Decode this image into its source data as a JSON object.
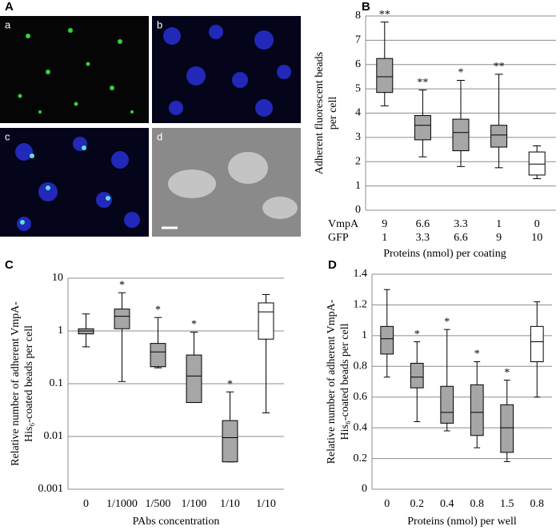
{
  "image_panel": {
    "label": "A",
    "subpanels": [
      "a",
      "b",
      "c",
      "d"
    ]
  },
  "chart_data": [
    {
      "type": "box",
      "label": "B",
      "ylabel": [
        "Adherent  fluorescent beads",
        "per cell"
      ],
      "xlabel": "Proteins (nmol) per coating",
      "category_rows": [
        {
          "name": "VmpA",
          "values": [
            "9",
            "6.6",
            "3.3",
            "1",
            "0"
          ]
        },
        {
          "name": "GFP",
          "values": [
            "1",
            "3.3",
            "6.6",
            "9",
            "10"
          ]
        }
      ],
      "boxes": [
        {
          "min": 4.3,
          "q1": 4.85,
          "median": 5.5,
          "q3": 6.25,
          "max": 7.75,
          "color": "#a6a6a6"
        },
        {
          "min": 2.2,
          "q1": 2.9,
          "median": 3.5,
          "q3": 3.9,
          "max": 4.95,
          "color": "#a6a6a6"
        },
        {
          "min": 1.8,
          "q1": 2.45,
          "median": 3.2,
          "q3": 3.75,
          "max": 5.35,
          "color": "#a6a6a6"
        },
        {
          "min": 1.75,
          "q1": 2.6,
          "median": 3.1,
          "q3": 3.5,
          "max": 5.6,
          "color": "#a6a6a6"
        },
        {
          "min": 1.3,
          "q1": 1.45,
          "median": 1.9,
          "q3": 2.4,
          "max": 2.65,
          "color": "#ffffff"
        }
      ],
      "annotations": [
        "**",
        "**",
        "*",
        "**",
        null
      ],
      "ylim": [
        0,
        8
      ],
      "yticks": [
        0,
        1,
        2,
        3,
        4,
        5,
        6,
        7,
        8
      ],
      "grid": true,
      "log_scale": false
    },
    {
      "type": "box",
      "label": "C",
      "ylabel": [
        "Relative number of adherent VmpA-",
        "His₆-coated beads per cell"
      ],
      "xlabel": "PAbs concentration",
      "categories": [
        "0",
        "1/1000",
        "1/500",
        "1/100",
        "1/10",
        "1/10"
      ],
      "boxes": [
        {
          "min": 0.5,
          "q1": 0.88,
          "median": 1.0,
          "q3": 1.1,
          "max": 2.1,
          "color": "#a6a6a6"
        },
        {
          "min": 0.11,
          "q1": 1.1,
          "median": 1.9,
          "q3": 2.6,
          "max": 5.3,
          "color": "#a6a6a6"
        },
        {
          "min": 0.2,
          "q1": 0.21,
          "median": 0.4,
          "q3": 0.58,
          "max": 1.8,
          "color": "#a6a6a6"
        },
        {
          "min": 0.044,
          "q1": 0.044,
          "median": 0.14,
          "q3": 0.35,
          "max": 0.95,
          "color": "#a6a6a6"
        },
        {
          "min": 0.0033,
          "q1": 0.0033,
          "median": 0.0095,
          "q3": 0.02,
          "max": 0.07,
          "color": "#a6a6a6"
        },
        {
          "min": 0.028,
          "q1": 0.7,
          "median": 2.3,
          "q3": 3.4,
          "max": 4.9,
          "color": "#ffffff"
        }
      ],
      "annotations": [
        null,
        "*",
        "*",
        "*",
        "*",
        null
      ],
      "ylim": [
        0.001,
        10
      ],
      "yticks": [
        0.001,
        0.01,
        0.1,
        1,
        10
      ],
      "grid": true,
      "log_scale": true
    },
    {
      "type": "box",
      "label": "D",
      "ylabel": [
        "Relative number of adherent VmpA-",
        "His₆-coated beads per cell"
      ],
      "xlabel": "Proteins (nmol) per  well",
      "categories": [
        "0",
        "0.2",
        "0.4",
        "0.8",
        "1.5",
        "0.8"
      ],
      "boxes": [
        {
          "min": 0.73,
          "q1": 0.88,
          "median": 0.98,
          "q3": 1.06,
          "max": 1.3,
          "color": "#a6a6a6"
        },
        {
          "min": 0.44,
          "q1": 0.66,
          "median": 0.73,
          "q3": 0.82,
          "max": 0.96,
          "color": "#a6a6a6"
        },
        {
          "min": 0.38,
          "q1": 0.43,
          "median": 0.5,
          "q3": 0.67,
          "max": 1.04,
          "color": "#a6a6a6"
        },
        {
          "min": 0.27,
          "q1": 0.35,
          "median": 0.5,
          "q3": 0.68,
          "max": 0.83,
          "color": "#a6a6a6"
        },
        {
          "min": 0.18,
          "q1": 0.24,
          "median": 0.4,
          "q3": 0.55,
          "max": 0.71,
          "color": "#a6a6a6"
        },
        {
          "min": 0.6,
          "q1": 0.83,
          "median": 0.96,
          "q3": 1.06,
          "max": 1.22,
          "color": "#ffffff"
        }
      ],
      "annotations": [
        null,
        "*",
        "*",
        "*",
        "*",
        null
      ],
      "ylim": [
        0,
        1.4
      ],
      "yticks": [
        0,
        0.2,
        0.4,
        0.6,
        0.8,
        1,
        1.2,
        1.4
      ],
      "grid": true,
      "log_scale": false
    }
  ]
}
